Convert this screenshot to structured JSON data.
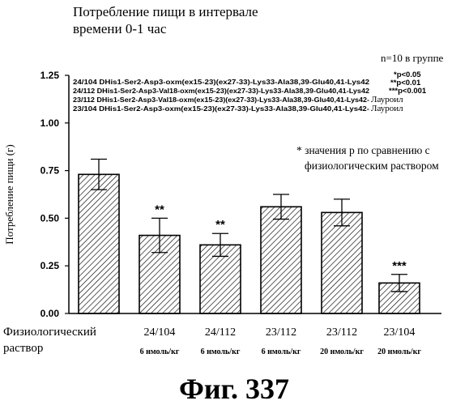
{
  "chart_data": {
    "type": "bar",
    "title_lines": [
      "Потребление пищи в интервале",
      "времени 0-1 час"
    ],
    "ylabel": "Потребление пищи (г)",
    "xlabel": "",
    "ylim": [
      0,
      1.25
    ],
    "yticks": [
      "0.00",
      "0.25",
      "0.50",
      "0.75",
      "1.00",
      "1.25"
    ],
    "grid": false,
    "categories": [
      {
        "name": "Физиологический раствор",
        "line1": "Физиологический",
        "line2": "раствор",
        "dose": ""
      },
      {
        "name": "24/104",
        "line1": "24/104",
        "line2": "",
        "dose": "6 нмоль/кг"
      },
      {
        "name": "24/112",
        "line1": "24/112",
        "line2": "",
        "dose": "6 нмоль/кг"
      },
      {
        "name": "23/112",
        "line1": "23/112",
        "line2": "",
        "dose": "6 нмоль/кг"
      },
      {
        "name": "23/112",
        "line1": "23/112",
        "line2": "",
        "dose": "20 нмоль/кг"
      },
      {
        "name": "23/104",
        "line1": "23/104",
        "line2": "",
        "dose": "20 нмоль/кг"
      }
    ],
    "values": [
      0.73,
      0.41,
      0.36,
      0.56,
      0.53,
      0.16
    ],
    "errors": [
      0.08,
      0.09,
      0.06,
      0.065,
      0.07,
      0.045
    ],
    "significance": [
      "",
      "**",
      "**",
      "",
      "",
      "***"
    ],
    "n_label": "n=10 в группе",
    "p_legend": [
      "*p<0.05",
      "**p<0.01",
      "***p<0.001"
    ],
    "compounds": [
      {
        "code": "24/104 DHis1-Ser2-Asp3-oxm(ex15-23)(ex27-33)-Lys33-Ala38,39-Glu40,41-Lys42",
        "suffix": ""
      },
      {
        "code": "24/112 DHis1-Ser2-Asp3-Val18-oxm(ex15-23)(ex27-33)-Lys33-Ala38,39-Glu40,41-Lys42",
        "suffix": ""
      },
      {
        "code": "23/112 DHis1-Ser2-Asp3-Val18-oxm(ex15-23)(ex27-33)-Lys33-Ala38,39-Glu40,41-Lys42-",
        "suffix": "Лауроил"
      },
      {
        "code": "23/104 DHis1-Ser2-Asp3-oxm(ex15-23)(ex27-33)-Lys33-Ala38,39-Glu40,41-Lys42-",
        "suffix": "Лауроил"
      }
    ],
    "note_lines": [
      "* значения р по сравнению с",
      "физиологическим раствором"
    ],
    "caption": "Фиг. 337",
    "colors": {
      "bar_stroke": "#000000",
      "hatch": "#000000",
      "background": "#ffffff"
    }
  }
}
